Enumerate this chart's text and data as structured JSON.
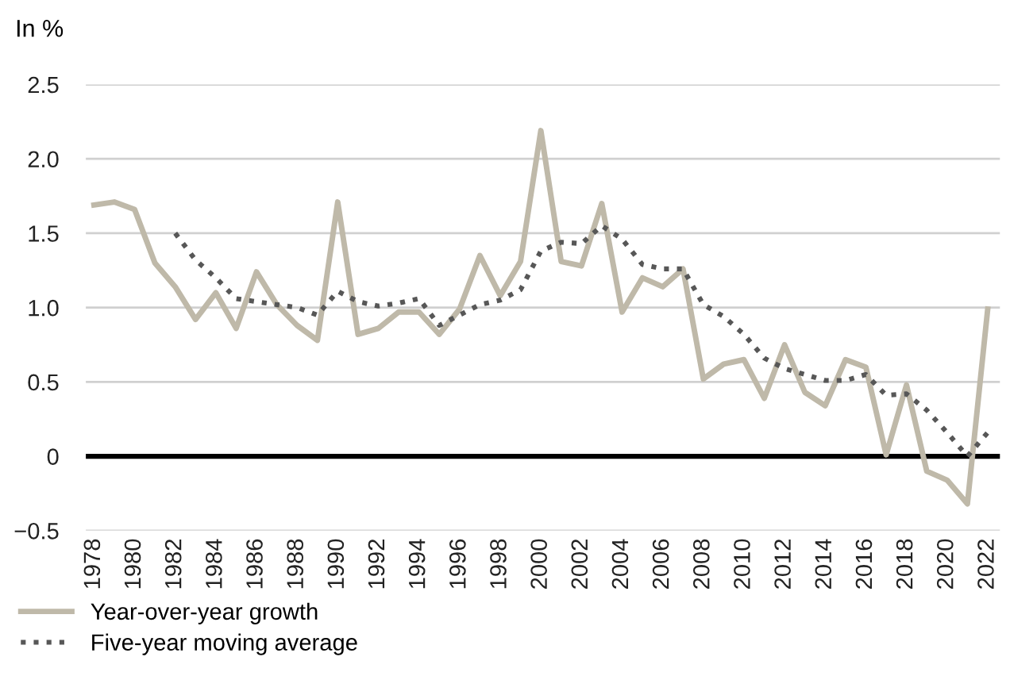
{
  "chart_data": {
    "type": "line",
    "ylabel": "In %",
    "x": [
      1978,
      1979,
      1980,
      1981,
      1982,
      1983,
      1984,
      1985,
      1986,
      1987,
      1988,
      1989,
      1990,
      1991,
      1992,
      1993,
      1994,
      1995,
      1996,
      1997,
      1998,
      1999,
      2000,
      2001,
      2002,
      2003,
      2004,
      2005,
      2006,
      2007,
      2008,
      2009,
      2010,
      2011,
      2012,
      2013,
      2014,
      2015,
      2016,
      2017,
      2018,
      2019,
      2020,
      2021,
      2022
    ],
    "series": [
      {
        "name": "Year-over-year growth",
        "color": "#bfb9a9",
        "line_style": "solid",
        "values": [
          1.69,
          1.71,
          1.66,
          1.3,
          1.14,
          0.92,
          1.1,
          0.86,
          1.24,
          1.02,
          0.88,
          0.78,
          1.71,
          0.82,
          0.86,
          0.97,
          0.97,
          0.82,
          0.99,
          1.35,
          1.08,
          1.31,
          2.19,
          1.31,
          1.28,
          1.7,
          0.97,
          1.2,
          1.14,
          1.26,
          0.52,
          0.62,
          0.65,
          0.39,
          0.75,
          0.43,
          0.34,
          0.65,
          0.6,
          0.01,
          0.48,
          -0.1,
          -0.16,
          -0.32,
          0.99
        ]
      },
      {
        "name": "Five-year moving average",
        "color": "#575757",
        "line_style": "dotted",
        "values": [
          null,
          null,
          null,
          null,
          1.5,
          1.32,
          1.2,
          1.06,
          1.04,
          1.02,
          1.0,
          0.95,
          1.11,
          1.04,
          1.01,
          1.03,
          1.06,
          0.88,
          0.95,
          1.02,
          1.05,
          1.12,
          1.38,
          1.44,
          1.43,
          1.55,
          1.46,
          1.29,
          1.26,
          1.26,
          1.02,
          0.94,
          0.82,
          0.66,
          0.59,
          0.55,
          0.51,
          0.51,
          0.55,
          0.41,
          0.42,
          0.31,
          0.16,
          0.0,
          0.16
        ]
      }
    ],
    "xlim": [
      1977.6,
      2022.6
    ],
    "xticks": [
      1978,
      1980,
      1982,
      1984,
      1986,
      1988,
      1990,
      1992,
      1994,
      1996,
      1998,
      2000,
      2002,
      2004,
      2006,
      2008,
      2010,
      2012,
      2014,
      2016,
      2018,
      2020,
      2022
    ],
    "ylim": [
      -0.5,
      2.5
    ],
    "yticks": [
      {
        "value": -0.5,
        "label": "−0.5"
      },
      {
        "value": 0,
        "label": "0"
      },
      {
        "value": 0.5,
        "label": "0.5"
      },
      {
        "value": 1,
        "label": "1.0"
      },
      {
        "value": 1.5,
        "label": "1.5"
      },
      {
        "value": 2,
        "label": "2.0"
      },
      {
        "value": 2.5,
        "label": "2.5"
      }
    ],
    "ref_lines": [
      {
        "axis": "y",
        "value": 0,
        "color": "#000000",
        "line_style": "solid"
      }
    ],
    "grid": "y",
    "legend": "bottom left"
  }
}
